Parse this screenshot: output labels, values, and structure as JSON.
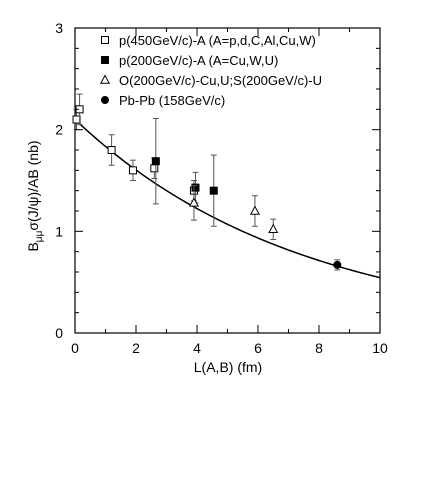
{
  "chart_data": {
    "type": "scatter",
    "title": "",
    "xlabel": "L(A,B) (fm)",
    "ylabel_main": "B",
    "ylabel_sub": "μμ",
    "ylabel_rest": "σ(J/ψ)/AB (nb)",
    "xlim": [
      0,
      10
    ],
    "ylim": [
      0,
      3
    ],
    "x_ticks": [
      0,
      2,
      4,
      6,
      8,
      10
    ],
    "y_ticks": [
      0,
      1,
      2,
      3
    ],
    "grid": false,
    "legend_position": "top-right",
    "series": [
      {
        "name": "p(450GeV/c)-A (A=p,d,C,Al,Cu,W)",
        "marker": "open-square",
        "points": [
          {
            "x": 0.05,
            "y": 2.1,
            "err": 0.1
          },
          {
            "x": 0.15,
            "y": 2.2,
            "err": 0.15
          },
          {
            "x": 1.2,
            "y": 1.8,
            "err": 0.15
          },
          {
            "x": 1.9,
            "y": 1.6,
            "err": 0.1
          },
          {
            "x": 2.6,
            "y": 1.62,
            "err": 0.1
          },
          {
            "x": 3.9,
            "y": 1.4,
            "err": 0.1
          }
        ]
      },
      {
        "name": "p(200GeV/c)-A (A=Cu,W,U)",
        "marker": "filled-square",
        "points": [
          {
            "x": 2.65,
            "y": 1.69,
            "err": 0.42
          },
          {
            "x": 3.95,
            "y": 1.43,
            "err": 0.15
          },
          {
            "x": 4.55,
            "y": 1.4,
            "err": 0.35
          }
        ]
      },
      {
        "name": "O(200GeV/c)-Cu,U;S(200GeV/c)-U",
        "marker": "open-triangle",
        "points": [
          {
            "x": 3.9,
            "y": 1.28,
            "err": 0.17
          },
          {
            "x": 5.9,
            "y": 1.2,
            "err": 0.15
          },
          {
            "x": 6.5,
            "y": 1.02,
            "err": 0.1
          }
        ]
      },
      {
        "name": "Pb-Pb (158GeV/c)",
        "marker": "filled-circle",
        "points": [
          {
            "x": 8.6,
            "y": 0.67,
            "err": 0.05
          }
        ]
      }
    ],
    "fit_curve": {
      "type": "exponential",
      "a": 2.1,
      "b": 0.135
    }
  }
}
